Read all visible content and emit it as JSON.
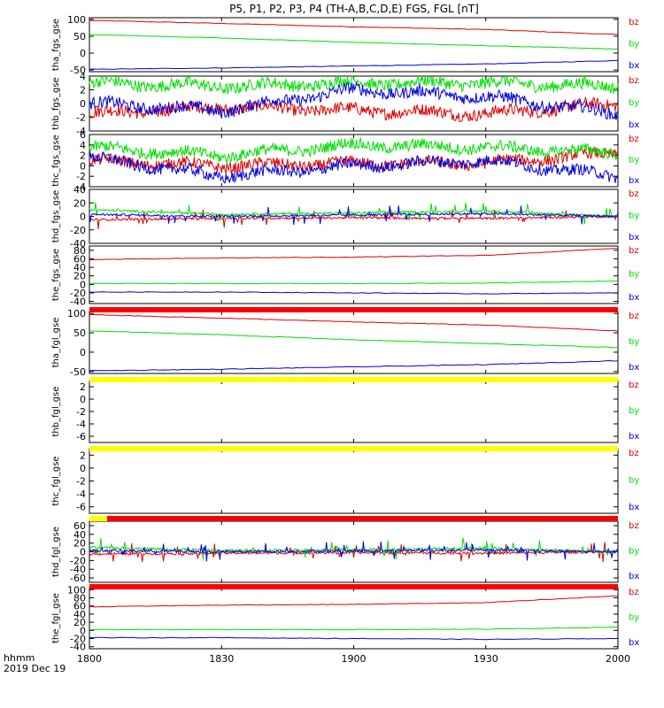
{
  "title": "P5, P1, P2, P3, P4 (TH-A,B,C,D,E) FGS, FGL [nT]",
  "time_label": "hhmm",
  "date_label": "2019 Dec 19",
  "colors": {
    "bz": "#e00000",
    "by": "#00e000",
    "bx": "#0000e0",
    "bar_red": "#ff0000",
    "bar_yellow": "#ffff00"
  },
  "chart_data": [
    {
      "type": "line",
      "ylabel": "tha_fgs_gse",
      "yticks": [
        "100",
        "50",
        "0",
        "-50"
      ],
      "ylim": [
        -55,
        105
      ],
      "x": [
        "1800",
        "1830",
        "1900",
        "1930",
        "2000"
      ],
      "series": [
        {
          "name": "bz",
          "values": [
            97,
            88,
            78,
            70,
            55
          ],
          "style": "smooth"
        },
        {
          "name": "by",
          "values": [
            55,
            45,
            32,
            22,
            12
          ],
          "style": "smooth"
        },
        {
          "name": "bx",
          "values": [
            -48,
            -44,
            -38,
            -32,
            -22
          ],
          "style": "smooth"
        }
      ]
    },
    {
      "type": "line",
      "ylabel": "thb_fgs_gse",
      "yticks": [
        "4",
        "2",
        "0",
        "-2",
        "-4"
      ],
      "ylim": [
        -4,
        4
      ],
      "x": [
        "1800",
        "1830",
        "1900",
        "1930",
        "2000"
      ],
      "series": [
        {
          "name": "bz",
          "values": [
            -1.5,
            -0.5,
            -1,
            -1.5,
            0
          ],
          "style": "noisy"
        },
        {
          "name": "by",
          "values": [
            3,
            2.5,
            3,
            3,
            2.5
          ],
          "style": "noisy"
        },
        {
          "name": "bx",
          "values": [
            0,
            -1,
            2,
            1,
            -1.5
          ],
          "style": "noisy"
        }
      ]
    },
    {
      "type": "line",
      "ylabel": "thc_fgs_gse",
      "yticks": [
        "6",
        "4",
        "2",
        "0",
        "-2",
        "-4"
      ],
      "ylim": [
        -4,
        6
      ],
      "x": [
        "1800",
        "1830",
        "1900",
        "1930",
        "2000"
      ],
      "series": [
        {
          "name": "bz",
          "values": [
            1,
            0,
            0.5,
            0.5,
            2.5
          ],
          "style": "noisy"
        },
        {
          "name": "by",
          "values": [
            3.5,
            2,
            4,
            3.5,
            2.5
          ],
          "style": "noisy"
        },
        {
          "name": "bx",
          "values": [
            1.5,
            -2,
            0,
            1,
            -2
          ],
          "style": "noisy"
        }
      ]
    },
    {
      "type": "line",
      "ylabel": "thd_fgs_gse",
      "yticks": [
        "40",
        "20",
        "0",
        "-20",
        "-40"
      ],
      "ylim": [
        -40,
        40
      ],
      "x": [
        "1800",
        "1830",
        "1900",
        "1930",
        "2000"
      ],
      "series": [
        {
          "name": "bz",
          "values": [
            -5,
            -3,
            -2,
            -3,
            0
          ],
          "style": "spiky"
        },
        {
          "name": "by",
          "values": [
            10,
            3,
            5,
            8,
            0
          ],
          "style": "spiky"
        },
        {
          "name": "bx",
          "values": [
            3,
            0,
            2,
            4,
            0
          ],
          "style": "spiky"
        }
      ]
    },
    {
      "type": "line",
      "ylabel": "the_fgs_gse",
      "yticks": [
        "80",
        "60",
        "40",
        "20",
        "0",
        "-20",
        "-40"
      ],
      "ylim": [
        -45,
        90
      ],
      "x": [
        "1800",
        "1830",
        "1900",
        "1930",
        "2000"
      ],
      "series": [
        {
          "name": "bz",
          "values": [
            58,
            62,
            64,
            68,
            85
          ],
          "style": "smooth"
        },
        {
          "name": "by",
          "values": [
            2,
            2,
            2,
            3,
            8
          ],
          "style": "smooth"
        },
        {
          "name": "bx",
          "values": [
            -18,
            -18,
            -20,
            -22,
            -20
          ],
          "style": "smooth"
        }
      ]
    },
    {
      "type": "line",
      "ylabel": "tha_fgl_gse",
      "yticks": [
        "100",
        "50",
        "0",
        "-50"
      ],
      "ylim": [
        -55,
        105
      ],
      "x": [
        "1800",
        "1830",
        "1900",
        "1930",
        "2000"
      ],
      "series": [
        {
          "name": "bz",
          "values": [
            97,
            88,
            78,
            70,
            55
          ],
          "style": "smooth"
        },
        {
          "name": "by",
          "values": [
            55,
            45,
            32,
            22,
            12
          ],
          "style": "smooth"
        },
        {
          "name": "bx",
          "values": [
            -48,
            -44,
            -38,
            -32,
            -22
          ],
          "style": "smooth"
        }
      ]
    },
    {
      "type": "line",
      "ylabel": "thb_fgl_gse",
      "yticks": [
        "2",
        "0",
        "-2",
        "-4",
        "-6"
      ],
      "ylim": [
        -7,
        3
      ],
      "x": [
        "1800",
        "1830",
        "1900",
        "1930",
        "2000"
      ],
      "series": []
    },
    {
      "type": "line",
      "ylabel": "thc_fgl_gse",
      "yticks": [
        "2",
        "0",
        "-2",
        "-4",
        "-6"
      ],
      "ylim": [
        -7,
        3
      ],
      "x": [
        "1800",
        "1830",
        "1900",
        "1930",
        "2000"
      ],
      "series": []
    },
    {
      "type": "line",
      "ylabel": "thd_fgl_gse",
      "yticks": [
        "60",
        "40",
        "20",
        "0",
        "-20",
        "-40",
        "-60"
      ],
      "ylim": [
        -70,
        70
      ],
      "x": [
        "1800",
        "1830",
        "1900",
        "1930",
        "2000"
      ],
      "series": [
        {
          "name": "bz",
          "values": [
            -5,
            -3,
            -2,
            -3,
            0
          ],
          "style": "spiky"
        },
        {
          "name": "by",
          "values": [
            10,
            3,
            5,
            8,
            0
          ],
          "style": "spiky"
        },
        {
          "name": "bx",
          "values": [
            3,
            0,
            2,
            4,
            0
          ],
          "style": "spiky"
        }
      ]
    },
    {
      "type": "line",
      "ylabel": "the_fgl_gse",
      "yticks": [
        "100",
        "80",
        "60",
        "40",
        "20",
        "0",
        "-20",
        "-40"
      ],
      "ylim": [
        -45,
        105
      ],
      "x": [
        "1800",
        "1830",
        "1900",
        "1930",
        "2000"
      ],
      "series": [
        {
          "name": "bz",
          "values": [
            58,
            62,
            64,
            68,
            85
          ],
          "style": "smooth"
        },
        {
          "name": "by",
          "values": [
            2,
            2,
            2,
            3,
            8
          ],
          "style": "smooth"
        },
        {
          "name": "bx",
          "values": [
            -18,
            -18,
            -20,
            -22,
            -20
          ],
          "style": "smooth"
        }
      ]
    }
  ],
  "legend_labels": [
    "bz",
    "by",
    "bx"
  ],
  "xaxis_ticks": [
    "1800",
    "1830",
    "1900",
    "1930",
    "2000"
  ],
  "status_bars": [
    "red",
    "yellow",
    "yellow",
    "yellow-red",
    "red"
  ]
}
